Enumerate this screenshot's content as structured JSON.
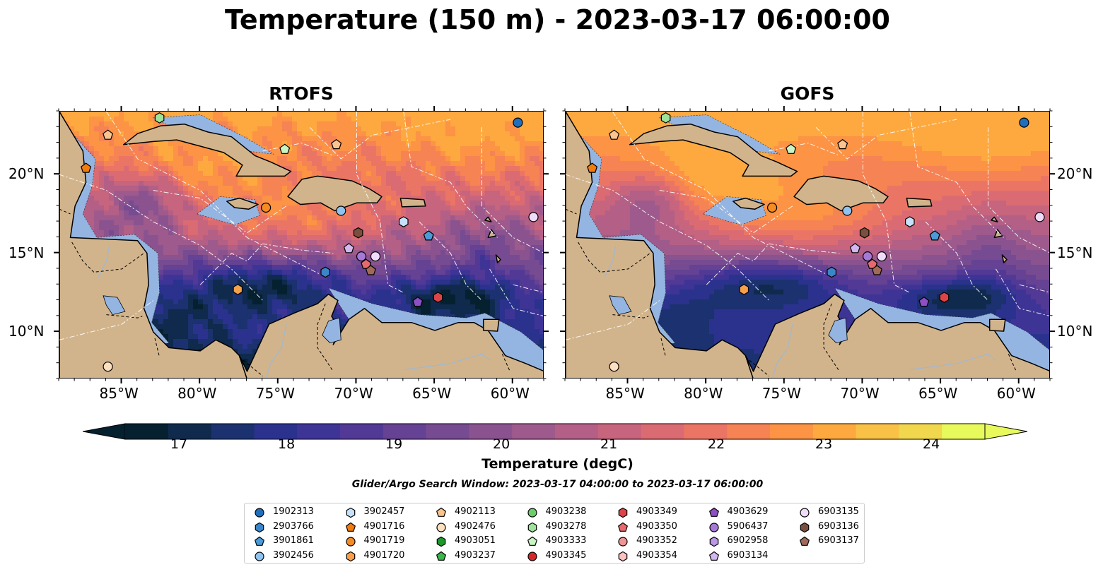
{
  "figure": {
    "title": "Temperature (150 m) - 2023-03-17 06:00:00",
    "panels": [
      "RTOFS",
      "GOFS"
    ],
    "colorbar_label": "Temperature (degC)",
    "colorbar_ticks": [
      "17",
      "18",
      "19",
      "20",
      "21",
      "22",
      "23",
      "24"
    ],
    "search_window": "Glider/Argo Search Window: 2023-03-17 04:00:00 to 2023-03-17 06:00:00"
  },
  "axes": {
    "lon_ticks": [
      {
        "label": "85°W",
        "lon": -85
      },
      {
        "label": "80°W",
        "lon": -80
      },
      {
        "label": "75°W",
        "lon": -75
      },
      {
        "label": "70°W",
        "lon": -70
      },
      {
        "label": "65°W",
        "lon": -65
      },
      {
        "label": "60°W",
        "lon": -60
      }
    ],
    "lat_ticks": [
      {
        "label": "20°N",
        "lat": 20
      },
      {
        "label": "15°N",
        "lat": 15
      },
      {
        "label": "10°N",
        "lat": 10
      }
    ],
    "lon_range": [
      -89,
      -58
    ],
    "lat_range": [
      7,
      24
    ]
  },
  "colors": {
    "land": "#d2b48c",
    "shelf": "#94b5e2",
    "colormap": [
      "#05202f",
      "#0f2a4d",
      "#1c3170",
      "#2a328d",
      "#3e3496",
      "#523996",
      "#654293",
      "#774b91",
      "#8a538f",
      "#9e5a8c",
      "#b35f86",
      "#c7647e",
      "#db6b72",
      "#eb7565",
      "#f68354",
      "#fc9345",
      "#fda93f",
      "#f9c145",
      "#f1d74e",
      "#e8fa5b"
    ]
  },
  "legend": [
    {
      "id": "1902313",
      "marker": "circle",
      "color": "#1f6fbf"
    },
    {
      "id": "2903766",
      "marker": "hexagon",
      "color": "#3a86c8"
    },
    {
      "id": "3901861",
      "marker": "pentagon",
      "color": "#4b9bd8"
    },
    {
      "id": "3902456",
      "marker": "circle",
      "color": "#8fc3f0"
    },
    {
      "id": "3902457",
      "marker": "hexagon",
      "color": "#c6e2fb"
    },
    {
      "id": "4901716",
      "marker": "pentagon",
      "color": "#f27b0e"
    },
    {
      "id": "4901719",
      "marker": "circle",
      "color": "#f58b22"
    },
    {
      "id": "4901720",
      "marker": "hexagon",
      "color": "#f7a04a"
    },
    {
      "id": "4902113",
      "marker": "pentagon",
      "color": "#fbc38d"
    },
    {
      "id": "4902476",
      "marker": "circle",
      "color": "#fde0c0"
    },
    {
      "id": "4903051",
      "marker": "hexagon",
      "color": "#1e9a2c"
    },
    {
      "id": "4903237",
      "marker": "pentagon",
      "color": "#3cb54a"
    },
    {
      "id": "4903238",
      "marker": "circle",
      "color": "#6ccc6c"
    },
    {
      "id": "4903278",
      "marker": "hexagon",
      "color": "#9ee39a"
    },
    {
      "id": "4903333",
      "marker": "pentagon",
      "color": "#c9f5c5"
    },
    {
      "id": "4903345",
      "marker": "circle",
      "color": "#d62728"
    },
    {
      "id": "4903349",
      "marker": "hexagon",
      "color": "#dd4448"
    },
    {
      "id": "4903350",
      "marker": "pentagon",
      "color": "#e66a6d"
    },
    {
      "id": "4903352",
      "marker": "circle",
      "color": "#f09494"
    },
    {
      "id": "4903354",
      "marker": "hexagon",
      "color": "#f9c3c2"
    },
    {
      "id": "4903629",
      "marker": "pentagon",
      "color": "#8c4fc4"
    },
    {
      "id": "5906437",
      "marker": "circle",
      "color": "#a57ad6"
    },
    {
      "id": "6902958",
      "marker": "hexagon",
      "color": "#bc97e3"
    },
    {
      "id": "6903134",
      "marker": "pentagon",
      "color": "#d3b8f0"
    },
    {
      "id": "6903135",
      "marker": "circle",
      "color": "#efdcfb"
    },
    {
      "id": "6903136",
      "marker": "hexagon",
      "color": "#7a4f3f"
    },
    {
      "id": "6903137",
      "marker": "pentagon",
      "color": "#a06a58"
    }
  ],
  "floats": [
    {
      "id": "1902313",
      "lon": -59.7,
      "lat": 23.3
    },
    {
      "id": "4902476",
      "lon": -85.9,
      "lat": 7.8
    },
    {
      "id": "4902113",
      "lon": -85.9,
      "lat": 22.5
    },
    {
      "id": "4901716",
      "lon": -87.3,
      "lat": 20.4
    },
    {
      "id": "4903278",
      "lon": -82.6,
      "lat": 23.6
    },
    {
      "id": "4903333",
      "lon": -74.6,
      "lat": 21.6
    },
    {
      "id": "4902113",
      "lon": -71.3,
      "lat": 21.9
    },
    {
      "id": "4901719",
      "lon": -75.8,
      "lat": 17.9
    },
    {
      "id": "3902456",
      "lon": -71.0,
      "lat": 17.7
    },
    {
      "id": "3902457",
      "lon": -67.0,
      "lat": 17.0
    },
    {
      "id": "3901861",
      "lon": -65.4,
      "lat": 16.1
    },
    {
      "id": "6903135",
      "lon": -58.7,
      "lat": 17.3
    },
    {
      "id": "6903136",
      "lon": -69.9,
      "lat": 16.3
    },
    {
      "id": "6903134",
      "lon": -70.5,
      "lat": 15.3
    },
    {
      "id": "5906437",
      "lon": -69.7,
      "lat": 14.8
    },
    {
      "id": "6903135",
      "lon": -68.8,
      "lat": 14.8
    },
    {
      "id": "4903350",
      "lon": -69.4,
      "lat": 14.3
    },
    {
      "id": "6903137",
      "lon": -69.1,
      "lat": 13.9
    },
    {
      "id": "2903766",
      "lon": -72.0,
      "lat": 13.8
    },
    {
      "id": "4901720",
      "lon": -77.6,
      "lat": 12.7
    },
    {
      "id": "4903629",
      "lon": -66.1,
      "lat": 11.9
    },
    {
      "id": "4903349",
      "lon": -64.8,
      "lat": 12.2
    }
  ]
}
